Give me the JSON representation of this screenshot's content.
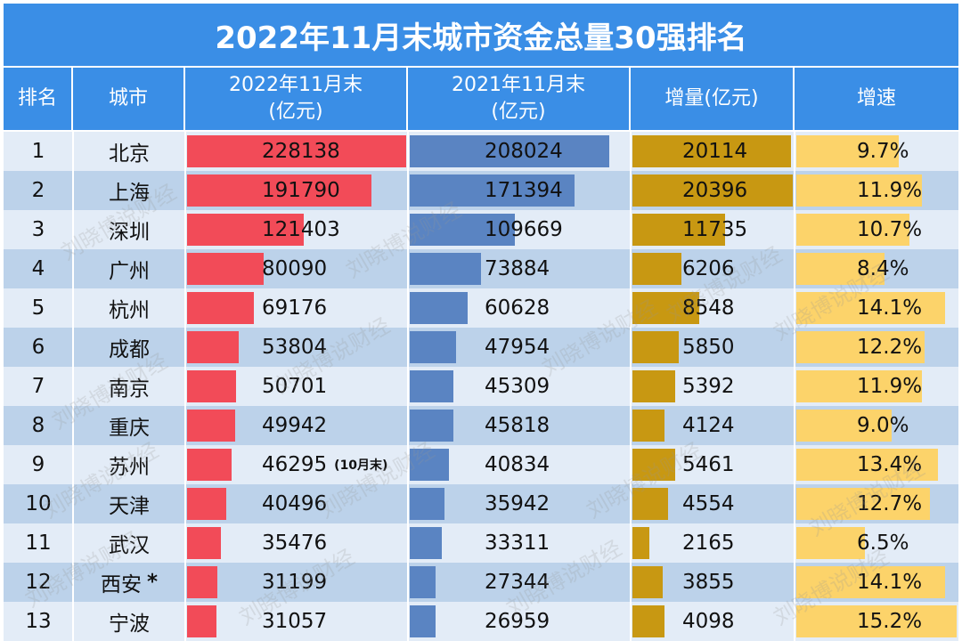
{
  "title": "2022年11月末城市资金总量30强排名",
  "headers": {
    "rank": "排名",
    "city": "城市",
    "y2022": [
      "2022年11月末",
      "(亿元)"
    ],
    "y2021": [
      "2021年11月末",
      "(亿元)"
    ],
    "increase": "增量(亿元)",
    "growth": "增速"
  },
  "watermark": "刘晓博说财经",
  "colors": {
    "header_bg": "#3a8ee6",
    "bar_2022": "#f24b58",
    "bar_2021": "#5a84c2",
    "bar_increase": "#c89812",
    "bar_growth": "#fcd36a",
    "row_dark": "#bcd2ea",
    "row_light": "#e3ecf7"
  },
  "chart_data": {
    "type": "table",
    "title": "2022年11月末城市资金总量30强排名",
    "columns": [
      "排名",
      "城市",
      "2022年11月末(亿元)",
      "2021年11月末(亿元)",
      "增量(亿元)",
      "增速"
    ],
    "rows": [
      {
        "rank": "1",
        "city": "北京",
        "v2022": 228138,
        "v2022_text": "228138",
        "v2021": 208024,
        "v2021_text": "208024",
        "inc": 20114,
        "inc_text": "20114",
        "growth": 9.7,
        "growth_text": "9.7%"
      },
      {
        "rank": "2",
        "city": "上海",
        "v2022": 191790,
        "v2022_text": "191790",
        "v2021": 171394,
        "v2021_text": "171394",
        "inc": 20396,
        "inc_text": "20396",
        "growth": 11.9,
        "growth_text": "11.9%"
      },
      {
        "rank": "3",
        "city": "深圳",
        "v2022": 121403,
        "v2022_text": "121403",
        "v2021": 109669,
        "v2021_text": "109669",
        "inc": 11735,
        "inc_text": "11735",
        "growth": 10.7,
        "growth_text": "10.7%"
      },
      {
        "rank": "4",
        "city": "广州",
        "v2022": 80090,
        "v2022_text": "80090",
        "v2021": 73884,
        "v2021_text": "73884",
        "inc": 6206,
        "inc_text": "6206",
        "growth": 8.4,
        "growth_text": "8.4%"
      },
      {
        "rank": "5",
        "city": "杭州",
        "v2022": 69176,
        "v2022_text": "69176",
        "v2021": 60628,
        "v2021_text": "60628",
        "inc": 8548,
        "inc_text": "8548",
        "growth": 14.1,
        "growth_text": "14.1%"
      },
      {
        "rank": "6",
        "city": "成都",
        "v2022": 53804,
        "v2022_text": "53804",
        "v2021": 47954,
        "v2021_text": "47954",
        "inc": 5850,
        "inc_text": "5850",
        "growth": 12.2,
        "growth_text": "12.2%"
      },
      {
        "rank": "7",
        "city": "南京",
        "v2022": 50701,
        "v2022_text": "50701",
        "v2021": 45309,
        "v2021_text": "45309",
        "inc": 5392,
        "inc_text": "5392",
        "growth": 11.9,
        "growth_text": "11.9%"
      },
      {
        "rank": "8",
        "city": "重庆",
        "v2022": 49942,
        "v2022_text": "49942",
        "v2021": 45818,
        "v2021_text": "45818",
        "inc": 4124,
        "inc_text": "4124",
        "growth": 9.0,
        "growth_text": "9.0%"
      },
      {
        "rank": "9",
        "city": "苏州",
        "v2022": 46295,
        "v2022_text": "46295",
        "note": "(10月末)",
        "v2021": 40834,
        "v2021_text": "40834",
        "inc": 5461,
        "inc_text": "5461",
        "growth": 13.4,
        "growth_text": "13.4%"
      },
      {
        "rank": "10",
        "city": "天津",
        "v2022": 40496,
        "v2022_text": "40496",
        "v2021": 35942,
        "v2021_text": "35942",
        "inc": 4554,
        "inc_text": "4554",
        "growth": 12.7,
        "growth_text": "12.7%"
      },
      {
        "rank": "11",
        "city": "武汉",
        "v2022": 35476,
        "v2022_text": "35476",
        "v2021": 33311,
        "v2021_text": "33311",
        "inc": 2165,
        "inc_text": "2165",
        "growth": 6.5,
        "growth_text": "6.5%"
      },
      {
        "rank": "12",
        "city": "西安",
        "star": "*",
        "v2022": 31199,
        "v2022_text": "31199",
        "v2021": 27344,
        "v2021_text": "27344",
        "inc": 3855,
        "inc_text": "3855",
        "growth": 14.1,
        "growth_text": "14.1%"
      },
      {
        "rank": "13",
        "city": "宁波",
        "v2022": 31057,
        "v2022_text": "31057",
        "v2021": 26959,
        "v2021_text": "26959",
        "inc": 4098,
        "inc_text": "4098",
        "growth": 15.2,
        "growth_text": "15.2%"
      }
    ]
  }
}
